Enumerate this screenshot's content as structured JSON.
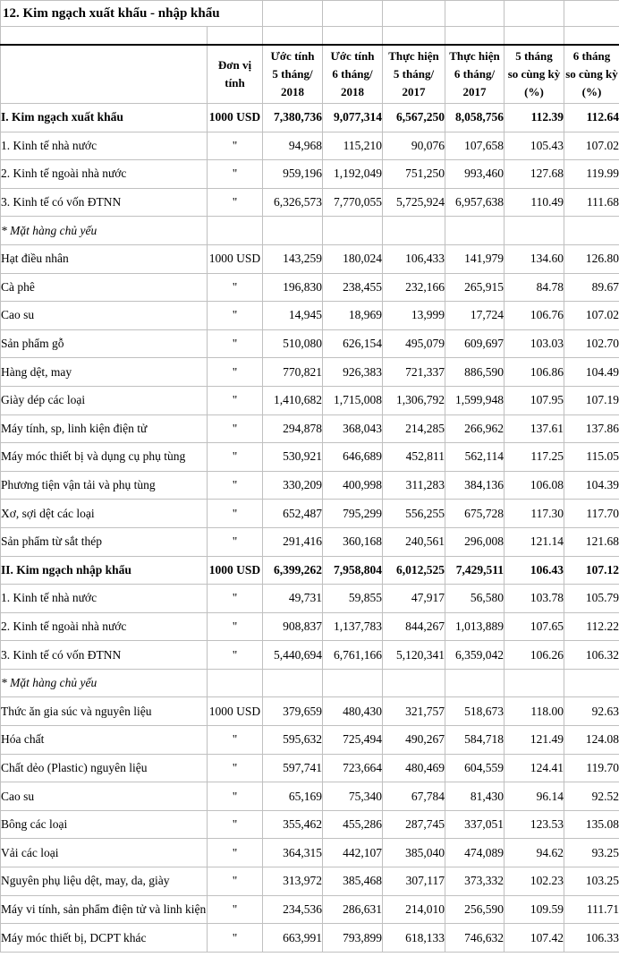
{
  "title": "12. Kim ngạch xuất khẩu - nhập khẩu",
  "colors": {
    "background": "#ffffff",
    "text": "#000000",
    "grid_border": "#c0c0c0",
    "heavy_rule": "#000000"
  },
  "table": {
    "unit_header": "Đơn vị\ntính",
    "columns": [
      "Ước tính\n5 tháng/\n2018",
      "Ước tính\n6 tháng/\n2018",
      "Thực hiện\n5 tháng/\n2017",
      "Thực hiện\n6 tháng/\n2017",
      "5 tháng\nso cùng kỳ\n(%)",
      "6 tháng\nso cùng kỳ\n(%)"
    ],
    "rows": [
      {
        "label": "I. Kim ngạch xuất khẩu",
        "unit": "1000 USD",
        "style": "bold",
        "values": [
          "7,380,736",
          "9,077,314",
          "6,567,250",
          "8,058,756",
          "112.39",
          "112.64"
        ]
      },
      {
        "label": "1. Kinh tế nhà nước",
        "unit": "\"",
        "style": "normal",
        "values": [
          "94,968",
          "115,210",
          "90,076",
          "107,658",
          "105.43",
          "107.02"
        ]
      },
      {
        "label": "2. Kinh tế ngoài nhà nước",
        "unit": "\"",
        "style": "normal",
        "values": [
          "959,196",
          "1,192,049",
          "751,250",
          "993,460",
          "127.68",
          "119.99"
        ]
      },
      {
        "label": "3. Kinh tế có vốn ĐTNN",
        "unit": "\"",
        "style": "normal",
        "values": [
          "6,326,573",
          "7,770,055",
          "5,725,924",
          "6,957,638",
          "110.49",
          "111.68"
        ]
      },
      {
        "label": "* Mặt hàng chủ yếu",
        "unit": "",
        "style": "italic",
        "values": [
          "",
          "",
          "",
          "",
          "",
          ""
        ]
      },
      {
        "label": "Hạt điều nhân",
        "unit": "1000 USD",
        "style": "normal",
        "values": [
          "143,259",
          "180,024",
          "106,433",
          "141,979",
          "134.60",
          "126.80"
        ]
      },
      {
        "label": "Cà phê",
        "unit": "\"",
        "style": "normal",
        "values": [
          "196,830",
          "238,455",
          "232,166",
          "265,915",
          "84.78",
          "89.67"
        ]
      },
      {
        "label": "Cao su",
        "unit": "\"",
        "style": "normal",
        "values": [
          "14,945",
          "18,969",
          "13,999",
          "17,724",
          "106.76",
          "107.02"
        ]
      },
      {
        "label": "Sản phẩm gỗ",
        "unit": "\"",
        "style": "normal",
        "values": [
          "510,080",
          "626,154",
          "495,079",
          "609,697",
          "103.03",
          "102.70"
        ]
      },
      {
        "label": "Hàng dệt, may",
        "unit": "\"",
        "style": "normal",
        "values": [
          "770,821",
          "926,383",
          "721,337",
          "886,590",
          "106.86",
          "104.49"
        ]
      },
      {
        "label": "Giày dép các loại",
        "unit": "\"",
        "style": "normal",
        "values": [
          "1,410,682",
          "1,715,008",
          "1,306,792",
          "1,599,948",
          "107.95",
          "107.19"
        ]
      },
      {
        "label": "Máy tính, sp, linh kiện điện tử",
        "unit": "\"",
        "style": "normal",
        "values": [
          "294,878",
          "368,043",
          "214,285",
          "266,962",
          "137.61",
          "137.86"
        ]
      },
      {
        "label": "Máy móc thiết bị và dụng cụ phụ tùng",
        "unit": "\"",
        "style": "normal",
        "values": [
          "530,921",
          "646,689",
          "452,811",
          "562,114",
          "117.25",
          "115.05"
        ]
      },
      {
        "label": "Phương tiện vận tải và phụ tùng",
        "unit": "\"",
        "style": "normal",
        "values": [
          "330,209",
          "400,998",
          "311,283",
          "384,136",
          "106.08",
          "104.39"
        ]
      },
      {
        "label": "Xơ, sợi dệt các loại",
        "unit": "\"",
        "style": "normal",
        "values": [
          "652,487",
          "795,299",
          "556,255",
          "675,728",
          "117.30",
          "117.70"
        ]
      },
      {
        "label": "Sản phẩm từ sắt thép",
        "unit": "\"",
        "style": "normal",
        "values": [
          "291,416",
          "360,168",
          "240,561",
          "296,008",
          "121.14",
          "121.68"
        ]
      },
      {
        "label": "II. Kim ngạch nhập khẩu",
        "unit": "1000 USD",
        "style": "bold",
        "values": [
          "6,399,262",
          "7,958,804",
          "6,012,525",
          "7,429,511",
          "106.43",
          "107.12"
        ]
      },
      {
        "label": "1. Kinh tế nhà nước",
        "unit": "\"",
        "style": "normal",
        "values": [
          "49,731",
          "59,855",
          "47,917",
          "56,580",
          "103.78",
          "105.79"
        ]
      },
      {
        "label": "2. Kinh tế ngoài nhà nước",
        "unit": "\"",
        "style": "normal",
        "values": [
          "908,837",
          "1,137,783",
          "844,267",
          "1,013,889",
          "107.65",
          "112.22"
        ]
      },
      {
        "label": "3. Kinh tế có vốn ĐTNN",
        "unit": "\"",
        "style": "normal",
        "values": [
          "5,440,694",
          "6,761,166",
          "5,120,341",
          "6,359,042",
          "106.26",
          "106.32"
        ]
      },
      {
        "label": "* Mặt hàng chủ yếu",
        "unit": "",
        "style": "italic",
        "values": [
          "",
          "",
          "",
          "",
          "",
          ""
        ]
      },
      {
        "label": "Thức ăn gia súc và nguyên liệu",
        "unit": "1000 USD",
        "style": "normal",
        "values": [
          "379,659",
          "480,430",
          "321,757",
          "518,673",
          "118.00",
          "92.63"
        ]
      },
      {
        "label": "Hóa chất",
        "unit": "\"",
        "style": "normal",
        "values": [
          "595,632",
          "725,494",
          "490,267",
          "584,718",
          "121.49",
          "124.08"
        ]
      },
      {
        "label": "Chất dẻo (Plastic) nguyên liệu",
        "unit": "\"",
        "style": "normal",
        "values": [
          "597,741",
          "723,664",
          "480,469",
          "604,559",
          "124.41",
          "119.70"
        ]
      },
      {
        "label": "Cao su",
        "unit": "\"",
        "style": "normal",
        "values": [
          "65,169",
          "75,340",
          "67,784",
          "81,430",
          "96.14",
          "92.52"
        ]
      },
      {
        "label": "Bông các loại",
        "unit": "\"",
        "style": "normal",
        "values": [
          "355,462",
          "455,286",
          "287,745",
          "337,051",
          "123.53",
          "135.08"
        ]
      },
      {
        "label": "Vải các loại",
        "unit": "\"",
        "style": "normal",
        "values": [
          "364,315",
          "442,107",
          "385,040",
          "474,089",
          "94.62",
          "93.25"
        ]
      },
      {
        "label": "Nguyên phụ liệu dệt, may, da, giày",
        "unit": "\"",
        "style": "normal",
        "values": [
          "313,972",
          "385,468",
          "307,117",
          "373,332",
          "102.23",
          "103.25"
        ]
      },
      {
        "label": "Máy vi tính, sản phẩm điện tử và linh kiện",
        "unit": "\"",
        "style": "normal",
        "values": [
          "234,536",
          "286,631",
          "214,010",
          "256,590",
          "109.59",
          "111.71"
        ]
      },
      {
        "label": "Máy móc thiết bị, DCPT khác",
        "unit": "\"",
        "style": "normal",
        "values": [
          "663,991",
          "793,899",
          "618,133",
          "746,632",
          "107.42",
          "106.33"
        ]
      }
    ]
  }
}
